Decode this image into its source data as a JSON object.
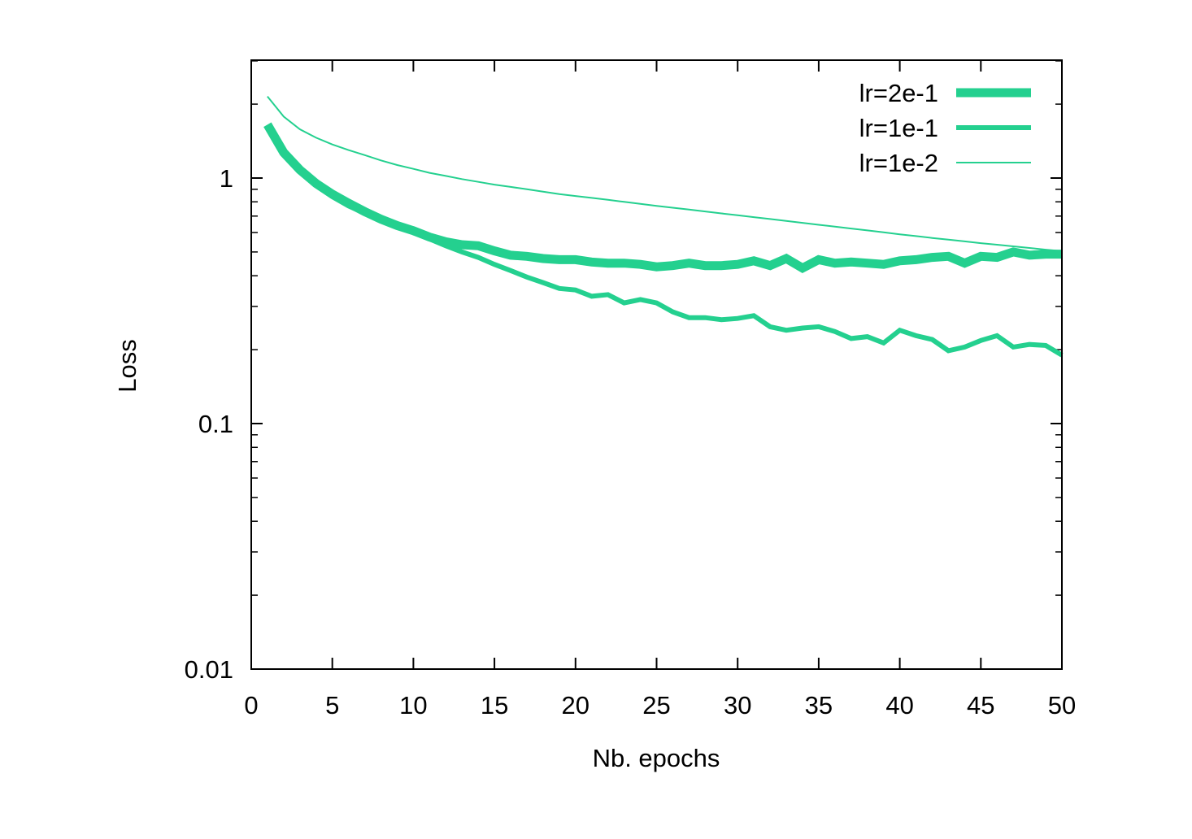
{
  "chart_data": {
    "type": "line",
    "title": "",
    "xlabel": "Nb. epochs",
    "ylabel": "Loss",
    "xlim": [
      0,
      50
    ],
    "ylim": [
      0.01,
      3
    ],
    "yscale": "log",
    "xticks": [
      0,
      5,
      10,
      15,
      20,
      25,
      30,
      35,
      40,
      45,
      50
    ],
    "xtick_labels": [
      "0",
      "5",
      "10",
      "15",
      "20",
      "25",
      "30",
      "35",
      "40",
      "45",
      "50"
    ],
    "yticks": [
      0.01,
      0.1,
      1
    ],
    "ytick_labels": [
      "0.01",
      "0.1",
      "1"
    ],
    "grid": false,
    "legend_position": "top-right",
    "line_color": "#24d08f",
    "x": [
      1,
      2,
      3,
      4,
      5,
      6,
      7,
      8,
      9,
      10,
      11,
      12,
      13,
      14,
      15,
      16,
      17,
      18,
      19,
      20,
      21,
      22,
      23,
      24,
      25,
      26,
      27,
      28,
      29,
      30,
      31,
      32,
      33,
      34,
      35,
      36,
      37,
      38,
      39,
      40,
      41,
      42,
      43,
      44,
      45,
      46,
      47,
      48,
      49,
      50
    ],
    "series": [
      {
        "name": "lr=2e-1",
        "width": "thick",
        "values": [
          1.65,
          1.27,
          1.08,
          0.95,
          0.86,
          0.79,
          0.73,
          0.68,
          0.64,
          0.61,
          0.575,
          0.55,
          0.535,
          0.53,
          0.505,
          0.485,
          0.48,
          0.47,
          0.465,
          0.465,
          0.455,
          0.45,
          0.45,
          0.445,
          0.435,
          0.44,
          0.45,
          0.44,
          0.44,
          0.445,
          0.46,
          0.44,
          0.47,
          0.43,
          0.465,
          0.45,
          0.455,
          0.45,
          0.445,
          0.46,
          0.465,
          0.475,
          0.48,
          0.45,
          0.48,
          0.475,
          0.5,
          0.485,
          0.49,
          0.49
        ]
      },
      {
        "name": "lr=1e-1",
        "width": "medium",
        "values": [
          1.6,
          1.25,
          1.06,
          0.93,
          0.84,
          0.77,
          0.72,
          0.67,
          0.63,
          0.6,
          0.565,
          0.53,
          0.5,
          0.475,
          0.445,
          0.42,
          0.395,
          0.375,
          0.355,
          0.35,
          0.33,
          0.335,
          0.31,
          0.32,
          0.31,
          0.285,
          0.27,
          0.27,
          0.265,
          0.268,
          0.275,
          0.248,
          0.24,
          0.245,
          0.248,
          0.237,
          0.222,
          0.226,
          0.213,
          0.24,
          0.228,
          0.22,
          0.198,
          0.205,
          0.218,
          0.228,
          0.205,
          0.21,
          0.208,
          0.19
        ]
      },
      {
        "name": "lr=1e-2",
        "width": "thin",
        "values": [
          2.15,
          1.78,
          1.58,
          1.46,
          1.37,
          1.3,
          1.24,
          1.18,
          1.13,
          1.09,
          1.05,
          1.02,
          0.99,
          0.965,
          0.94,
          0.92,
          0.9,
          0.88,
          0.86,
          0.845,
          0.83,
          0.815,
          0.8,
          0.785,
          0.77,
          0.757,
          0.744,
          0.731,
          0.718,
          0.705,
          0.693,
          0.681,
          0.669,
          0.657,
          0.645,
          0.634,
          0.623,
          0.612,
          0.601,
          0.59,
          0.58,
          0.57,
          0.561,
          0.552,
          0.543,
          0.535,
          0.527,
          0.519,
          0.511,
          0.504
        ]
      }
    ]
  }
}
